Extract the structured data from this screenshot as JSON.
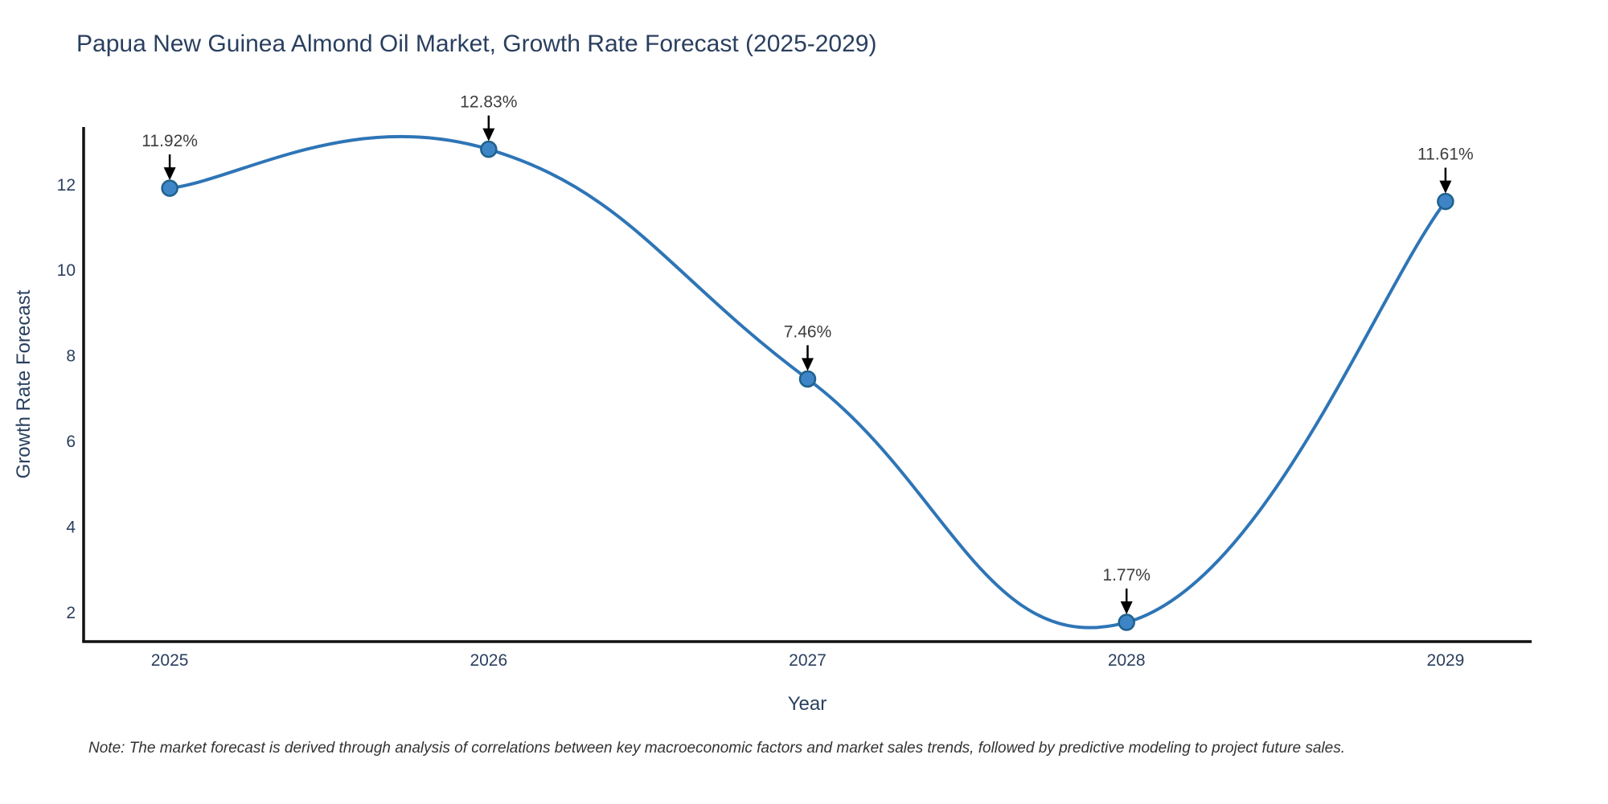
{
  "title": "Papua New Guinea Almond Oil Market, Growth Rate Forecast (2025-2029)",
  "note": "Note: The market forecast is derived through analysis of correlations between key macroeconomic factors and market sales trends, followed by predictive modeling to project future sales.",
  "chart_data": {
    "type": "line",
    "line_shape": "spline",
    "title": "Papua New Guinea Almond Oil Market, Growth Rate Forecast (2025-2029)",
    "xlabel": "Year",
    "ylabel": "Growth Rate Forecast",
    "x": [
      2025,
      2026,
      2027,
      2028,
      2029
    ],
    "values": [
      11.92,
      12.83,
      7.46,
      1.77,
      11.61
    ],
    "point_labels": [
      "11.92%",
      "12.83%",
      "7.46%",
      "1.77%",
      "11.61%"
    ],
    "x_tick_labels": [
      "2025",
      "2026",
      "2027",
      "2028",
      "2029"
    ],
    "y_ticks": [
      2,
      4,
      6,
      8,
      10,
      12
    ],
    "xlim": [
      2024.73,
      2029.27
    ],
    "ylim": [
      1.32,
      13.35
    ],
    "grid": false,
    "legend": "none",
    "markers": true,
    "colors": {
      "line": "#2e75b6",
      "marker_fill": "#3d85c6",
      "marker_stroke": "#1f618d",
      "arrow": "#000000",
      "axis_line": "#111111",
      "axis_text": "#2a3f5f",
      "annotation_text": "#3d3d3d"
    }
  }
}
